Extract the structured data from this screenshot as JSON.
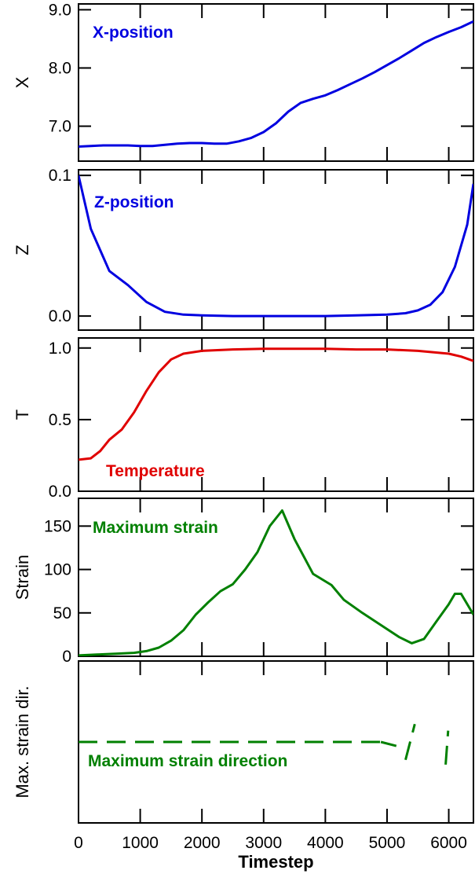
{
  "figure": {
    "xlabel": "Timestep",
    "xlim": [
      0,
      6400
    ],
    "xticks": [
      0,
      1000,
      2000,
      3000,
      4000,
      5000,
      6000
    ]
  },
  "chart_data": [
    {
      "type": "line",
      "ylabel": "X",
      "annotation": "X-position",
      "color": "#0000e0",
      "ylim": [
        6.4,
        9.1
      ],
      "yticks": [
        7.0,
        8.0,
        9.0
      ],
      "ytick_labels": [
        "7.0",
        "8.0",
        "9.0"
      ],
      "x": [
        0,
        200,
        400,
        600,
        800,
        1000,
        1200,
        1400,
        1600,
        1800,
        2000,
        2200,
        2400,
        2600,
        2800,
        3000,
        3200,
        3400,
        3600,
        3800,
        4000,
        4200,
        4400,
        4600,
        4800,
        5000,
        5200,
        5400,
        5600,
        5800,
        6000,
        6200,
        6400
      ],
      "y": [
        6.65,
        6.66,
        6.67,
        6.67,
        6.67,
        6.66,
        6.66,
        6.68,
        6.7,
        6.71,
        6.71,
        6.7,
        6.7,
        6.74,
        6.8,
        6.9,
        7.05,
        7.25,
        7.4,
        7.47,
        7.53,
        7.62,
        7.72,
        7.82,
        7.93,
        8.05,
        8.17,
        8.3,
        8.43,
        8.53,
        8.62,
        8.7,
        8.8
      ]
    },
    {
      "type": "line",
      "ylabel": "Z",
      "annotation": "Z-position",
      "color": "#0000e0",
      "ylim": [
        -0.01,
        0.104
      ],
      "yticks": [
        0.0,
        0.1
      ],
      "ytick_labels": [
        "0.0",
        "0.1"
      ],
      "x": [
        0,
        200,
        500,
        800,
        1100,
        1400,
        1700,
        2000,
        2500,
        3000,
        3500,
        4000,
        4500,
        5000,
        5300,
        5500,
        5700,
        5900,
        6100,
        6300,
        6400
      ],
      "y": [
        0.1,
        0.062,
        0.032,
        0.022,
        0.01,
        0.003,
        0.001,
        0.0005,
        0.0,
        0.0,
        0.0,
        0.0,
        0.0005,
        0.001,
        0.002,
        0.004,
        0.008,
        0.017,
        0.035,
        0.065,
        0.094
      ]
    },
    {
      "type": "line",
      "ylabel": "T",
      "annotation": "Temperature",
      "color": "#e00000",
      "ylim": [
        0.0,
        1.07
      ],
      "yticks": [
        0.0,
        0.5,
        1.0
      ],
      "ytick_labels": [
        "0.0",
        "0.5",
        "1.0"
      ],
      "x": [
        0,
        200,
        350,
        500,
        700,
        900,
        1100,
        1300,
        1500,
        1700,
        2000,
        2500,
        3000,
        3500,
        4000,
        4500,
        5000,
        5500,
        6000,
        6200,
        6400
      ],
      "y": [
        0.22,
        0.23,
        0.28,
        0.36,
        0.43,
        0.55,
        0.7,
        0.83,
        0.92,
        0.96,
        0.98,
        0.99,
        0.995,
        0.995,
        0.995,
        0.99,
        0.99,
        0.98,
        0.96,
        0.94,
        0.91
      ]
    },
    {
      "type": "line",
      "ylabel": "Strain",
      "annotation": "Maximum strain",
      "color": "#008000",
      "ylim": [
        0,
        182
      ],
      "yticks": [
        0,
        50,
        100,
        150
      ],
      "ytick_labels": [
        "0",
        "50",
        "100",
        "150"
      ],
      "x": [
        0,
        300,
        600,
        900,
        1100,
        1300,
        1500,
        1700,
        1900,
        2100,
        2300,
        2500,
        2700,
        2900,
        3100,
        3300,
        3500,
        3800,
        4100,
        4300,
        4600,
        4900,
        5200,
        5400,
        5600,
        5800,
        6000,
        6100,
        6200,
        6400
      ],
      "y": [
        1,
        2,
        3,
        4,
        6,
        10,
        18,
        30,
        48,
        62,
        75,
        83,
        100,
        120,
        150,
        168,
        135,
        95,
        82,
        65,
        50,
        36,
        22,
        15,
        20,
        40,
        60,
        72,
        72,
        48
      ]
    },
    {
      "type": "line",
      "ylabel": "Max. strain dir.",
      "annotation": "Maximum strain direction",
      "color": "#008000",
      "dashed": true,
      "ylim": [
        -1,
        1
      ],
      "yticks": [],
      "ytick_labels": [],
      "segments": [
        {
          "x": [
            0,
            4900
          ],
          "y": [
            0,
            0
          ]
        },
        {
          "x": [
            4900,
            5150
          ],
          "y": [
            0,
            -0.05
          ]
        },
        {
          "x": [
            5300,
            5450
          ],
          "y": [
            -0.22,
            0.22
          ]
        },
        {
          "x": [
            5950,
            5990
          ],
          "y": [
            -0.28,
            0.14
          ]
        }
      ]
    }
  ]
}
